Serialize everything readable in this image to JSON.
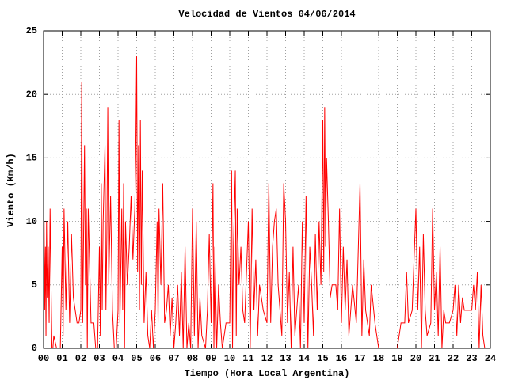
{
  "chart_data": {
    "type": "line",
    "title": "Velocidad de Vientos 04/06/2014",
    "x_label": "Tiempo (Hora Local Argentina)",
    "y_label": "Viento (Km/h)",
    "xlim": [
      0,
      24
    ],
    "ylim": [
      0,
      25
    ],
    "xticks": [
      {
        "value": 0,
        "label": "00"
      },
      {
        "value": 1,
        "label": "01"
      },
      {
        "value": 2,
        "label": "02"
      },
      {
        "value": 3,
        "label": "03"
      },
      {
        "value": 4,
        "label": "04"
      },
      {
        "value": 5,
        "label": "05"
      },
      {
        "value": 6,
        "label": "06"
      },
      {
        "value": 7,
        "label": "07"
      },
      {
        "value": 8,
        "label": "08"
      },
      {
        "value": 9,
        "label": "09"
      },
      10,
      11,
      12,
      13,
      14,
      15,
      16,
      17,
      18,
      19,
      20,
      21,
      22,
      23,
      24
    ],
    "yticks": [
      0,
      5,
      10,
      15,
      20,
      25
    ],
    "grid": true,
    "color": "#ff0000",
    "x": [
      0.0,
      0.03,
      0.06,
      0.1,
      0.13,
      0.16,
      0.2,
      0.25,
      0.3,
      0.35,
      0.4,
      0.45,
      0.5,
      0.55,
      0.7,
      0.9,
      1.0,
      1.05,
      1.1,
      1.2,
      1.3,
      1.4,
      1.5,
      1.6,
      1.7,
      1.8,
      1.9,
      2.0,
      2.05,
      2.1,
      2.2,
      2.25,
      2.3,
      2.35,
      2.4,
      2.5,
      2.55,
      2.7,
      2.8,
      2.9,
      3.0,
      3.05,
      3.1,
      3.15,
      3.2,
      3.3,
      3.35,
      3.4,
      3.45,
      3.5,
      3.6,
      3.7,
      3.8,
      3.9,
      4.0,
      4.05,
      4.1,
      4.2,
      4.25,
      4.3,
      4.35,
      4.4,
      4.5,
      4.6,
      4.7,
      4.8,
      4.9,
      4.95,
      5.0,
      5.05,
      5.1,
      5.15,
      5.2,
      5.25,
      5.3,
      5.4,
      5.5,
      5.6,
      5.7,
      5.8,
      5.9,
      6.0,
      6.1,
      6.15,
      6.2,
      6.3,
      6.4,
      6.5,
      6.6,
      6.7,
      6.8,
      6.9,
      7.0,
      7.1,
      7.2,
      7.3,
      7.4,
      7.5,
      7.6,
      7.7,
      7.8,
      7.9,
      8.0,
      8.1,
      8.2,
      8.3,
      8.4,
      8.5,
      8.7,
      8.8,
      8.9,
      9.0,
      9.1,
      9.15,
      9.2,
      9.3,
      9.4,
      9.5,
      9.6,
      9.8,
      10.0,
      10.1,
      10.15,
      10.2,
      10.3,
      10.35,
      10.4,
      10.5,
      10.6,
      10.7,
      10.8,
      11.0,
      11.1,
      11.2,
      11.3,
      11.4,
      11.5,
      11.6,
      11.8,
      12.0,
      12.1,
      12.2,
      12.3,
      12.4,
      12.5,
      12.6,
      12.7,
      12.8,
      12.9,
      13.0,
      13.1,
      13.2,
      13.3,
      13.4,
      13.5,
      13.6,
      13.7,
      13.8,
      13.9,
      14.0,
      14.1,
      14.2,
      14.3,
      14.4,
      14.5,
      14.6,
      14.7,
      14.8,
      14.9,
      15.0,
      15.05,
      15.1,
      15.15,
      15.2,
      15.3,
      15.4,
      15.5,
      15.7,
      15.8,
      15.9,
      16.0,
      16.1,
      16.2,
      16.3,
      16.4,
      16.5,
      16.6,
      16.8,
      17.0,
      17.1,
      17.2,
      17.3,
      17.5,
      17.6,
      17.8,
      18.0,
      18.5,
      19.0,
      19.2,
      19.4,
      19.5,
      19.6,
      19.8,
      20.0,
      20.1,
      20.2,
      20.3,
      20.4,
      20.5,
      20.6,
      20.8,
      20.9,
      21.0,
      21.1,
      21.2,
      21.3,
      21.4,
      21.5,
      21.6,
      21.8,
      22.0,
      22.1,
      22.2,
      22.3,
      22.4,
      22.5,
      22.6,
      22.8,
      23.0,
      23.1,
      23.2,
      23.3,
      23.4,
      23.5,
      23.6,
      23.7
    ],
    "values": [
      2,
      10,
      3,
      8,
      1,
      10,
      4,
      8,
      2,
      11,
      5,
      0,
      0,
      1,
      0,
      0,
      8,
      1,
      11,
      3,
      10,
      2,
      9,
      4,
      3,
      2,
      2,
      3,
      21,
      2,
      16,
      5,
      11,
      0,
      11,
      5,
      2,
      2,
      0,
      0,
      8,
      1,
      13,
      3,
      10,
      16,
      3,
      9,
      19,
      5,
      12,
      3,
      0,
      0,
      3,
      18,
      2,
      11,
      3,
      13,
      0,
      10,
      5,
      8,
      12,
      7,
      11,
      15,
      23,
      6,
      16,
      3,
      18,
      5,
      14,
      2,
      6,
      1,
      0,
      3,
      0,
      3,
      10,
      2,
      11,
      5,
      13,
      2,
      3,
      5,
      1,
      4,
      0,
      2,
      5,
      1,
      6,
      0,
      8,
      0,
      2,
      0,
      11,
      1,
      10,
      0,
      4,
      1,
      0,
      3,
      9,
      2,
      13,
      0,
      8,
      0,
      5,
      2,
      0,
      2,
      2,
      14,
      0,
      8,
      14,
      1,
      11,
      5,
      8,
      3,
      2,
      10,
      0,
      11,
      3,
      7,
      1,
      5,
      3,
      2,
      13,
      2,
      8,
      10,
      11,
      5,
      3,
      1,
      13,
      10,
      2,
      6,
      0,
      8,
      1,
      3,
      5,
      0,
      10,
      2,
      12,
      0,
      8,
      5,
      1,
      9,
      3,
      10,
      5,
      18,
      6,
      19,
      8,
      15,
      10,
      4,
      5,
      5,
      3,
      11,
      2,
      8,
      3,
      7,
      1,
      3,
      5,
      2,
      13,
      1,
      7,
      3,
      1,
      5,
      2,
      0,
      0,
      0,
      2,
      2,
      6,
      2,
      3,
      11,
      3,
      8,
      0,
      9,
      3,
      1,
      2,
      11,
      3,
      6,
      1,
      8,
      0,
      3,
      2,
      2,
      3,
      5,
      1,
      5,
      2,
      4,
      3,
      3,
      3,
      5,
      3,
      6,
      0,
      5,
      1,
      0
    ]
  }
}
